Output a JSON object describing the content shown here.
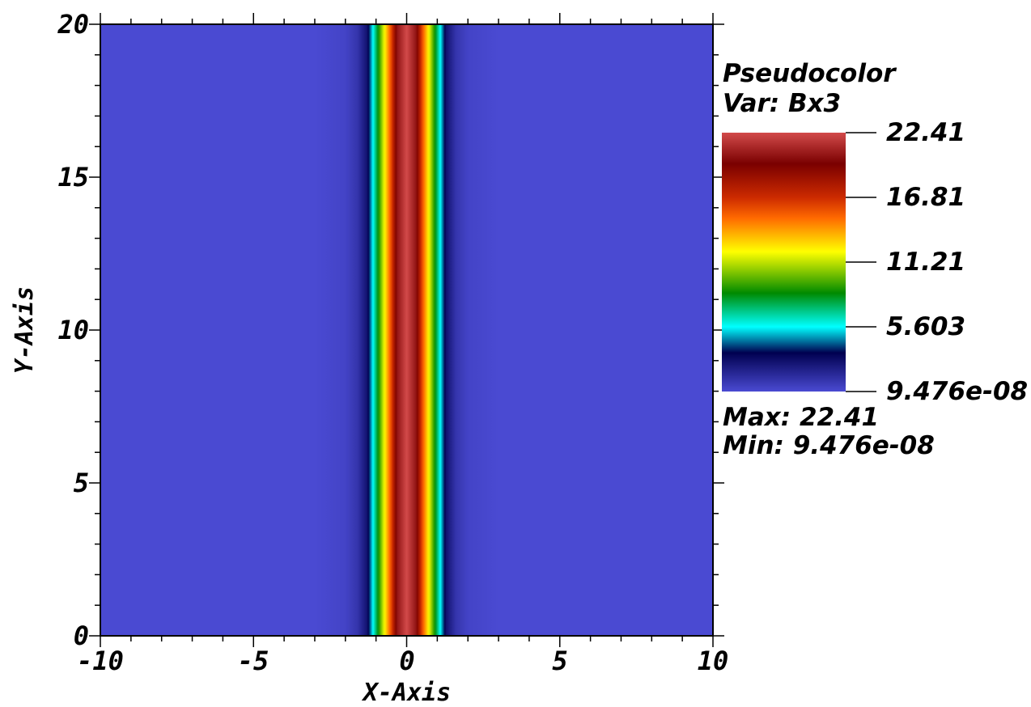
{
  "chart_data": {
    "type": "heatmap",
    "xlabel": "X-Axis",
    "ylabel": "Y-Axis",
    "xlim": [
      -10,
      10
    ],
    "ylim": [
      0,
      20
    ],
    "x_ticks": [
      "-10",
      "-5",
      "0",
      "5",
      "10"
    ],
    "y_ticks": [
      "0",
      "5",
      "10",
      "15",
      "20"
    ],
    "field": {
      "description_of_values": "Bx3 varies only with x; constant along y",
      "x": [
        -10,
        -3.0,
        -2.0,
        -1.6,
        -1.3,
        -1.1,
        -0.9,
        -0.7,
        -0.5,
        -0.3,
        0,
        0.3,
        0.5,
        0.7,
        0.9,
        1.1,
        1.3,
        1.6,
        2.0,
        3.0,
        10
      ],
      "value": [
        0.0,
        0.0,
        0.3,
        1.0,
        2.5,
        5.6,
        9.0,
        12.5,
        16.0,
        20.5,
        22.41,
        20.5,
        16.0,
        12.5,
        9.0,
        5.6,
        2.5,
        1.0,
        0.3,
        0.0,
        0.0
      ]
    },
    "legend": {
      "title": "Pseudocolor",
      "var": "Var: Bx3",
      "levels": [
        "22.41",
        "16.81",
        "11.21",
        "5.603",
        "9.476e-08"
      ],
      "max_text": "Max:  22.41",
      "min_text": "Min:  9.476e-08",
      "colormap": [
        {
          "stop": 0.0,
          "color": "#d24a4a"
        },
        {
          "stop": 0.12,
          "color": "#7a0000"
        },
        {
          "stop": 0.25,
          "color": "#cc2a00"
        },
        {
          "stop": 0.33,
          "color": "#ff6a00"
        },
        {
          "stop": 0.46,
          "color": "#ffff00"
        },
        {
          "stop": 0.62,
          "color": "#008a00"
        },
        {
          "stop": 0.75,
          "color": "#00ffff"
        },
        {
          "stop": 0.85,
          "color": "#000050"
        },
        {
          "stop": 1.0,
          "color": "#4a4ad2"
        }
      ]
    }
  }
}
